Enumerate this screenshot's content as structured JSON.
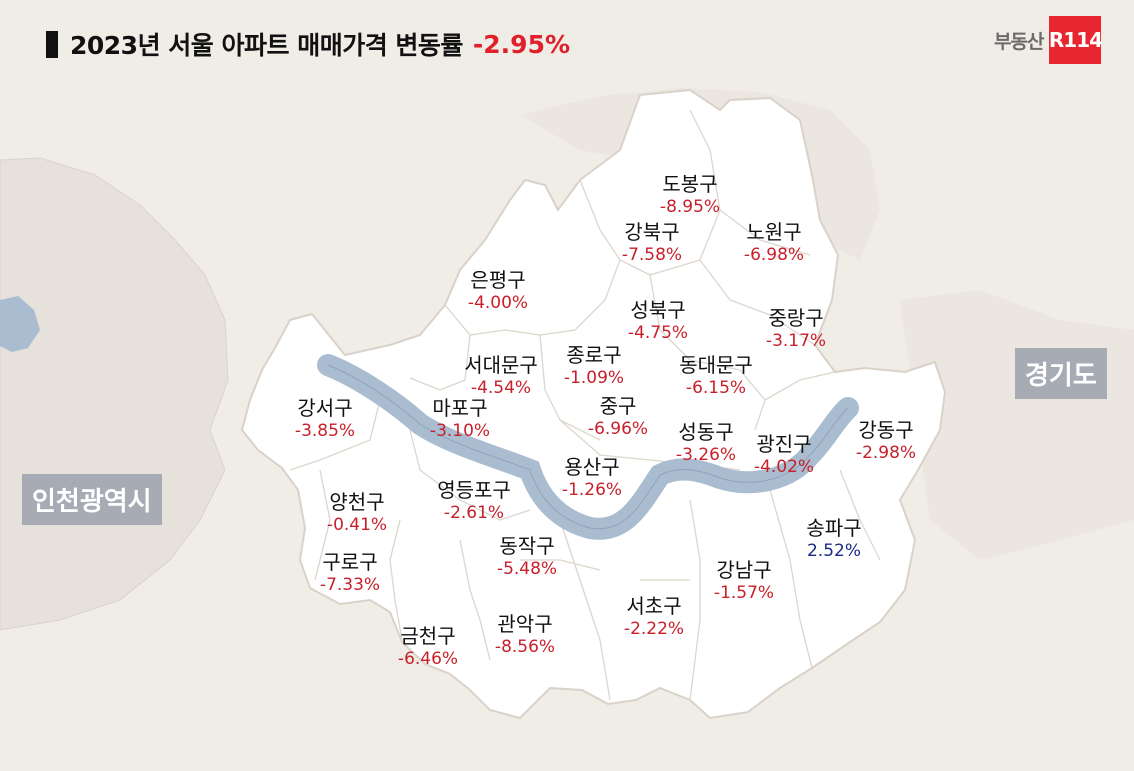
{
  "title": {
    "text": "2023년 서울 아파트 매매가격 변동률",
    "value": "-2.95%"
  },
  "logo": {
    "text": "부동산",
    "badge": "R114"
  },
  "regions": {
    "incheon": "인천광역시",
    "gyeonggi": "경기도"
  },
  "colors": {
    "negative": "#c8202b",
    "positive": "#1a2a86",
    "accent": "#e0202a",
    "river": "#a9bcd0",
    "district_fill": "#ffffff"
  },
  "districts": [
    {
      "id": "dobong",
      "name": "도봉구",
      "change": "-8.95%",
      "sign": "neg"
    },
    {
      "id": "gangbuk",
      "name": "강북구",
      "change": "-7.58%",
      "sign": "neg"
    },
    {
      "id": "nowon",
      "name": "노원구",
      "change": "-6.98%",
      "sign": "neg"
    },
    {
      "id": "eunpyeong",
      "name": "은평구",
      "change": "-4.00%",
      "sign": "neg"
    },
    {
      "id": "seongbuk",
      "name": "성북구",
      "change": "-4.75%",
      "sign": "neg"
    },
    {
      "id": "jungnang",
      "name": "중랑구",
      "change": "-3.17%",
      "sign": "neg"
    },
    {
      "id": "seodaemun",
      "name": "서대문구",
      "change": "-4.54%",
      "sign": "neg"
    },
    {
      "id": "jongno",
      "name": "종로구",
      "change": "-1.09%",
      "sign": "neg"
    },
    {
      "id": "dongdaemun",
      "name": "동대문구",
      "change": "-6.15%",
      "sign": "neg"
    },
    {
      "id": "gangseo",
      "name": "강서구",
      "change": "-3.85%",
      "sign": "neg"
    },
    {
      "id": "mapo",
      "name": "마포구",
      "change": "-3.10%",
      "sign": "neg"
    },
    {
      "id": "jung",
      "name": "중구",
      "change": "-6.96%",
      "sign": "neg"
    },
    {
      "id": "seongdong",
      "name": "성동구",
      "change": "-3.26%",
      "sign": "neg"
    },
    {
      "id": "gwangjin",
      "name": "광진구",
      "change": "-4.02%",
      "sign": "neg"
    },
    {
      "id": "gangdong",
      "name": "강동구",
      "change": "-2.98%",
      "sign": "neg"
    },
    {
      "id": "yongsan",
      "name": "용산구",
      "change": "-1.26%",
      "sign": "neg"
    },
    {
      "id": "yeongdeungpo",
      "name": "영등포구",
      "change": "-2.61%",
      "sign": "neg"
    },
    {
      "id": "yangcheon",
      "name": "양천구",
      "change": "-0.41%",
      "sign": "neg"
    },
    {
      "id": "songpa",
      "name": "송파구",
      "change": "2.52%",
      "sign": "pos"
    },
    {
      "id": "dongjak",
      "name": "동작구",
      "change": "-5.48%",
      "sign": "neg"
    },
    {
      "id": "guro",
      "name": "구로구",
      "change": "-7.33%",
      "sign": "neg"
    },
    {
      "id": "gangnam",
      "name": "강남구",
      "change": "-1.57%",
      "sign": "neg"
    },
    {
      "id": "seocho",
      "name": "서초구",
      "change": "-2.22%",
      "sign": "neg"
    },
    {
      "id": "gwanak",
      "name": "관악구",
      "change": "-8.56%",
      "sign": "neg"
    },
    {
      "id": "geumcheon",
      "name": "금천구",
      "change": "-6.46%",
      "sign": "neg"
    }
  ]
}
